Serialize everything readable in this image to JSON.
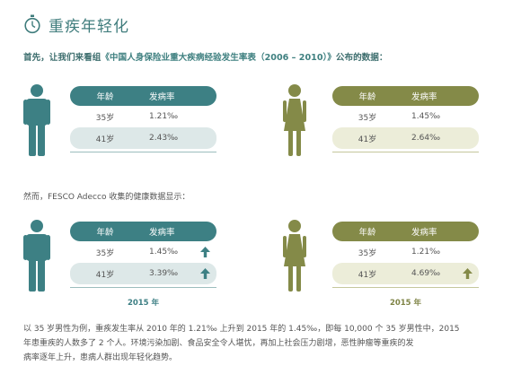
{
  "title": "重疾年轻化",
  "intro": {
    "prefix": "首先，让我们来看组",
    "source": "《中国人身保险业重大疾病经验发生率表（2006 – 2010）》",
    "suffix": "公布的数据："
  },
  "second_intro": "然而，FESCO Adecco 收集的健康数据显示：",
  "colors": {
    "male_accent": "#3d8084",
    "female_accent": "#848a48"
  },
  "tables": {
    "male_2010": {
      "header": [
        "年龄",
        "发病率"
      ],
      "rows": [
        {
          "age": "35岁",
          "rate": "1.21‰"
        },
        {
          "age": "41岁",
          "rate": "2.43‰"
        }
      ]
    },
    "female_2010": {
      "header": [
        "年龄",
        "发病率"
      ],
      "rows": [
        {
          "age": "35岁",
          "rate": "1.45‰"
        },
        {
          "age": "41岁",
          "rate": "2.64‰"
        }
      ]
    },
    "male_2015": {
      "header": [
        "年龄",
        "发病率"
      ],
      "rows": [
        {
          "age": "35岁",
          "rate": "1.45‰",
          "trend": "up-arrow-icon"
        },
        {
          "age": "41岁",
          "rate": "3.39‰",
          "trend": "up-arrow-icon"
        }
      ],
      "year": "2015 年"
    },
    "female_2015": {
      "header": [
        "年龄",
        "发病率"
      ],
      "rows": [
        {
          "age": "35岁",
          "rate": "1.21‰"
        },
        {
          "age": "41岁",
          "rate": "4.69‰",
          "trend": "up-arrow-icon"
        }
      ],
      "year": "2015 年"
    }
  },
  "footer_lines": [
    "以 35 岁男性为例，重疾发生率从 2010 年的 1.21‰ 上升到 2015 年的 1.45‰，即每 10,000 个 35 岁男性中，2015",
    "年患重疾的人数多了 2 个人。环境污染加剧、食品安全令人堪忧，再加上社会压力剧增，恶性肿瘤等重疾的发",
    "病率逐年上升，患病人群出现年轻化趋势。"
  ]
}
